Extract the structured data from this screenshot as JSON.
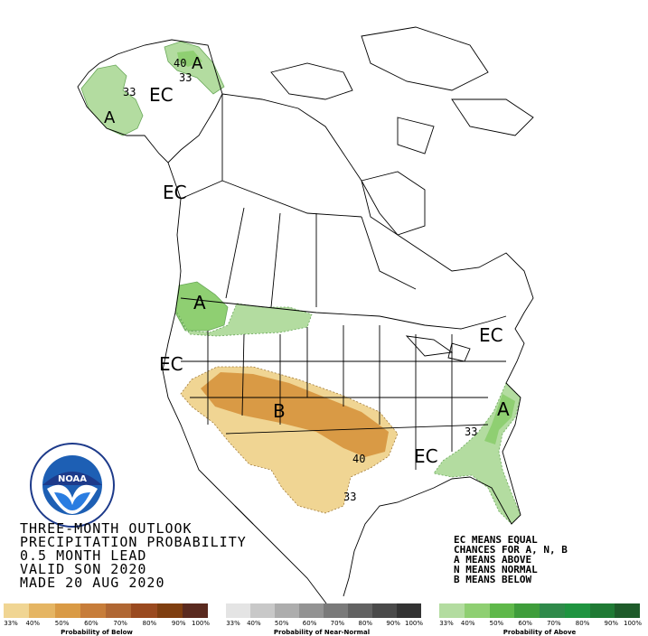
{
  "title": {
    "line1": "THREE-MONTH OUTLOOK",
    "line2": "PRECIPITATION PROBABILITY",
    "line3": "0.5 MONTH LEAD",
    "line4": "VALID SON 2020",
    "line5": "MADE 20 AUG 2020"
  },
  "legend_notes": {
    "line1": "EC MEANS EQUAL",
    "line2": "CHANCES FOR A, N, B",
    "line3": "A MEANS ABOVE",
    "line4": "N MEANS NORMAL",
    "line5": "B MEANS BELOW"
  },
  "map_labels": {
    "ec_alaska": "EC",
    "ec_bc": "EC",
    "ec_west": "EC",
    "ec_east": "EC",
    "ec_south": "EC",
    "a_alaska_west": "A",
    "a_alaska_north": "A",
    "a_northwest": "A",
    "a_southeast": "A",
    "b_southwest": "B",
    "c40_alaska": "40",
    "c33_alaska_north": "33",
    "c33_alaska_west": "33",
    "c40_plains": "40",
    "c33_texas": "33",
    "c33_southeast": "33"
  },
  "scales": {
    "below": {
      "caption": "Probability of Below",
      "colors": [
        "#f0d593",
        "#e5b563",
        "#d99a45",
        "#c77d3a",
        "#b06733",
        "#9a4a1f",
        "#7f3e10",
        "#5a2a1f"
      ],
      "ticks": [
        "33%",
        "40%",
        "50%",
        "60%",
        "70%",
        "80%",
        "90%",
        "100%"
      ]
    },
    "normal": {
      "caption": "Probability of Near-Normal",
      "colors": [
        "#e4e4e4",
        "#c8c8c8",
        "#adadad",
        "#939393",
        "#7a7a7a",
        "#626262",
        "#4a4a4a",
        "#333333"
      ],
      "ticks": [
        "33%",
        "40%",
        "50%",
        "60%",
        "70%",
        "80%",
        "90%",
        "100%"
      ]
    },
    "above": {
      "caption": "Probability of Above",
      "colors": [
        "#b3dca0",
        "#8fcf72",
        "#5fb84a",
        "#3f9d3b",
        "#2f8a4a",
        "#1f9440",
        "#1f7a34",
        "#1e5b2a"
      ],
      "ticks": [
        "33%",
        "40%",
        "50%",
        "60%",
        "70%",
        "80%",
        "90%",
        "100%"
      ]
    }
  },
  "colors": {
    "above_light": "#b3dca0",
    "above_mid": "#8fcf72",
    "below_light": "#f0d593",
    "below_mid": "#d99a45",
    "border": "#000000"
  },
  "logo_text": "NOAA"
}
